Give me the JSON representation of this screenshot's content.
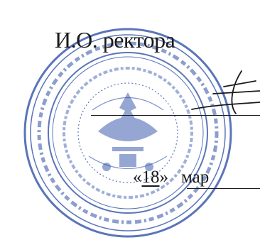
{
  "header": {
    "role_title": "И.О. ректора"
  },
  "date": {
    "open_quote": "«",
    "day": "18",
    "close_quote": "»",
    "month_fragment": "мар"
  },
  "stamp": {
    "color": "#2d4fa6",
    "ink_color": "#1a1a1a"
  }
}
